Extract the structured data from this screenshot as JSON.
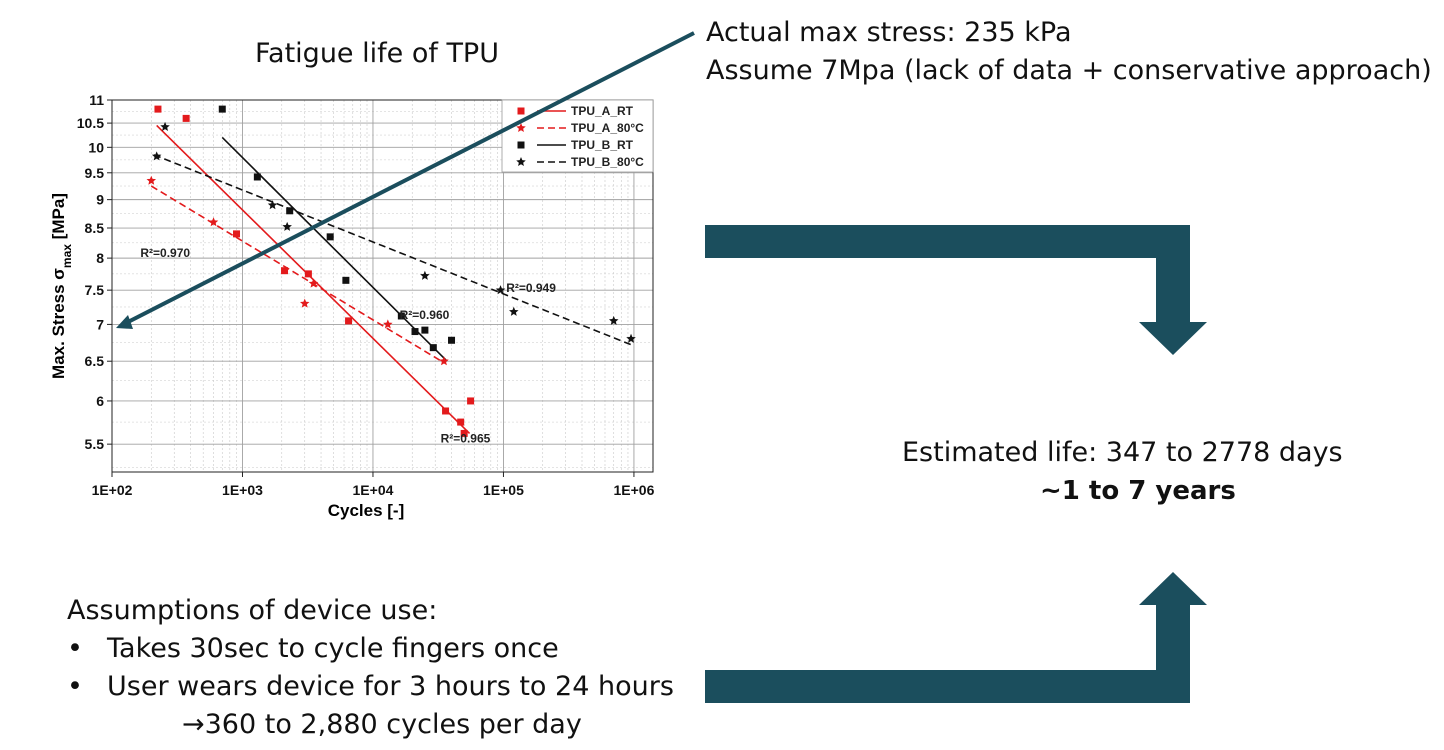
{
  "header": {
    "chart_title": "Fatigue life of TPU",
    "stress_line_1": "Actual max stress: 235 kPa",
    "stress_line_2": "Assume 7Mpa (lack of data + conservative approach)"
  },
  "estimate": {
    "life": "Estimated life: 347 to 2778 days",
    "years": "~1 to 7 years"
  },
  "assumptions": {
    "heading": "Assumptions of device use:",
    "bullet_symbol": "•",
    "items": [
      "Takes 30sec to cycle fingers once",
      "User wears device for 3 hours to 24 hours"
    ],
    "result": "→360 to 2,880 cycles per day"
  },
  "colors": {
    "teal": "#1b4e5d",
    "red": "#e31a1c",
    "black": "#111111",
    "grid": "#c8c8c8"
  },
  "icons": {
    "pointer_arrow": "teal-pointer-arrow-icon",
    "down_arrow": "teal-bent-down-arrow-icon",
    "up_arrow": "teal-bent-up-arrow-icon"
  },
  "chart_data": {
    "type": "scatter",
    "title": "",
    "xlabel": "Cycles [-]",
    "ylabel_main": "Max. Stress σ",
    "ylabel_sub": "max",
    "ylabel_unit": " [MPa]",
    "xscale": "log",
    "yscale": "log",
    "xlim": [
      100,
      1400000
    ],
    "ylim": [
      5.2,
      11
    ],
    "x_ticks": [
      {
        "value": 100,
        "label": "1E+02"
      },
      {
        "value": 1000,
        "label": "1E+03"
      },
      {
        "value": 10000,
        "label": "1E+04"
      },
      {
        "value": 100000,
        "label": "1E+05"
      },
      {
        "value": 1000000,
        "label": "1E+06"
      }
    ],
    "y_ticks": [
      {
        "value": 5.5,
        "label": "5.5"
      },
      {
        "value": 6,
        "label": "6"
      },
      {
        "value": 6.5,
        "label": "6.5"
      },
      {
        "value": 7,
        "label": "7"
      },
      {
        "value": 7.5,
        "label": "7.5"
      },
      {
        "value": 8,
        "label": "8"
      },
      {
        "value": 8.5,
        "label": "8.5"
      },
      {
        "value": 9,
        "label": "9"
      },
      {
        "value": 9.5,
        "label": "9.5"
      },
      {
        "value": 10,
        "label": "10"
      },
      {
        "value": 10.5,
        "label": "10.5"
      },
      {
        "value": 11,
        "label": "11"
      }
    ],
    "grid": true,
    "legend_position": "top-right",
    "series": [
      {
        "name": "TPU_A_RT",
        "color": "#e31a1c",
        "marker": "square",
        "dash": "solid",
        "points": [
          [
            225,
            10.8
          ],
          [
            370,
            10.6
          ],
          [
            900,
            8.4
          ],
          [
            2100,
            7.8
          ],
          [
            3200,
            7.75
          ],
          [
            6500,
            7.05
          ],
          [
            36000,
            5.88
          ],
          [
            47000,
            5.75
          ],
          [
            50000,
            5.62
          ],
          [
            56000,
            6.0
          ]
        ],
        "fit": [
          [
            220,
            10.45
          ],
          [
            55000,
            5.62
          ]
        ],
        "r2_label": "R²=0.965",
        "r2_at": [
          33000,
          5.52
        ]
      },
      {
        "name": "TPU_A_80°C",
        "color": "#e31a1c",
        "marker": "star",
        "dash": "dashed",
        "points": [
          [
            200,
            9.35
          ],
          [
            600,
            8.6
          ],
          [
            3000,
            7.3
          ],
          [
            3500,
            7.6
          ],
          [
            13000,
            7.0
          ],
          [
            35000,
            6.5
          ]
        ],
        "fit": [
          [
            200,
            9.25
          ],
          [
            35000,
            6.48
          ]
        ],
        "r2_label": "R²=0.970",
        "r2_at": [
          165,
          8.02
        ]
      },
      {
        "name": "TPU_B_RT",
        "color": "#111111",
        "marker": "square",
        "dash": "solid",
        "points": [
          [
            700,
            10.8
          ],
          [
            1300,
            9.42
          ],
          [
            2300,
            8.8
          ],
          [
            4700,
            8.35
          ],
          [
            6200,
            7.65
          ],
          [
            16500,
            7.12
          ],
          [
            21000,
            6.9
          ],
          [
            25000,
            6.92
          ],
          [
            29000,
            6.68
          ],
          [
            40000,
            6.78
          ]
        ],
        "fit": [
          [
            700,
            10.2
          ],
          [
            37000,
            6.5
          ]
        ],
        "r2_label": "R²=0.960",
        "r2_at": [
          16000,
          7.08
        ]
      },
      {
        "name": "TPU_B_80°C",
        "color": "#111111",
        "marker": "star",
        "dash": "dashed",
        "points": [
          [
            220,
            9.82
          ],
          [
            255,
            10.42
          ],
          [
            1700,
            8.9
          ],
          [
            2200,
            8.52
          ],
          [
            25000,
            7.72
          ],
          [
            95000,
            7.5
          ],
          [
            120000,
            7.18
          ],
          [
            700000,
            7.05
          ],
          [
            950000,
            6.8
          ]
        ],
        "fit": [
          [
            210,
            9.85
          ],
          [
            950000,
            6.72
          ]
        ],
        "r2_label": "R²=0.949",
        "r2_at": [
          105000,
          7.47
        ]
      }
    ]
  }
}
